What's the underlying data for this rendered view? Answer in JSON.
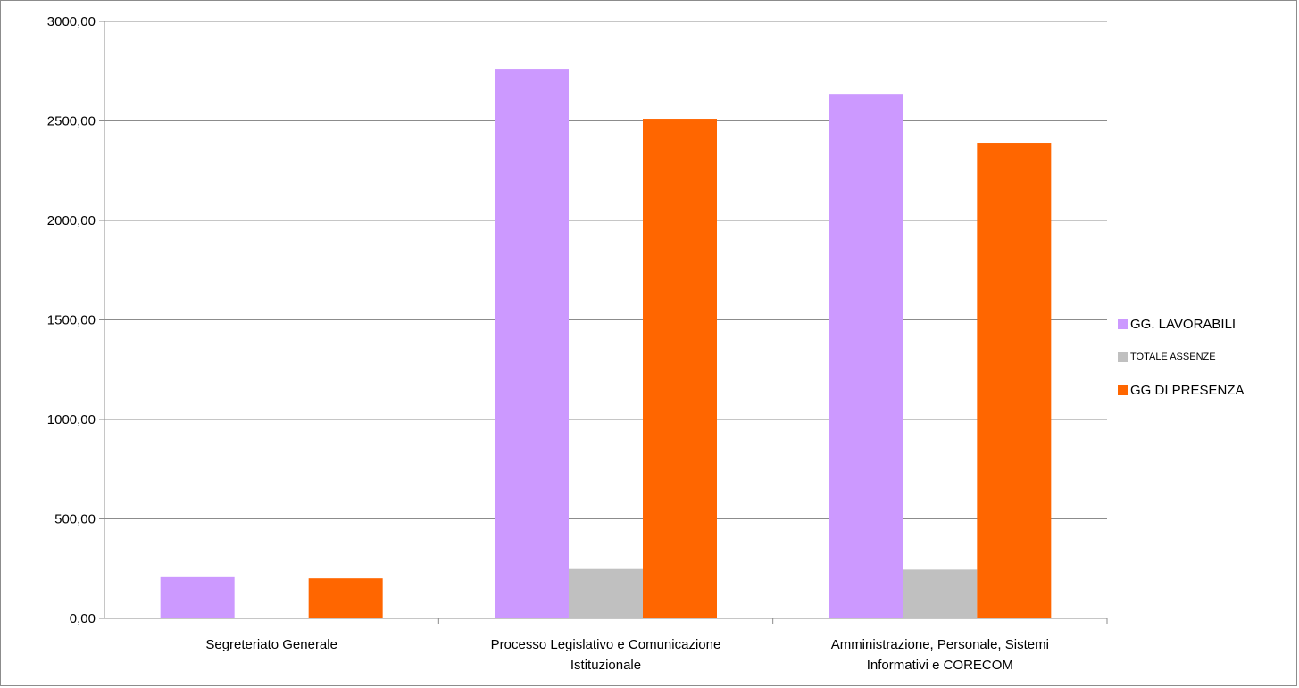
{
  "chart_data": {
    "type": "bar",
    "title": "",
    "xlabel": "",
    "ylabel": "",
    "ylim": [
      0,
      3000
    ],
    "yticks": [
      "0,00",
      "500,00",
      "1000,00",
      "1500,00",
      "2000,00",
      "2500,00",
      "3000,00"
    ],
    "grid": true,
    "legend_position": "right",
    "categories": [
      [
        "Segreteriato Generale"
      ],
      [
        "Processo Legislativo e Comunicazione",
        "Istituzionale"
      ],
      [
        "Amministrazione, Personale, Sistemi",
        "Informativi e CORECOM"
      ]
    ],
    "series": [
      {
        "name": "GG. LAVORABILI",
        "color": "#cc99ff",
        "values": [
          207,
          2762,
          2636
        ]
      },
      {
        "name": "TOTALE ASSENZE",
        "color": "#c0c0c0",
        "values": [
          0,
          248,
          245
        ]
      },
      {
        "name": "GG DI PRESENZA",
        "color": "#ff6600",
        "values": [
          201,
          2511,
          2390
        ]
      }
    ]
  }
}
